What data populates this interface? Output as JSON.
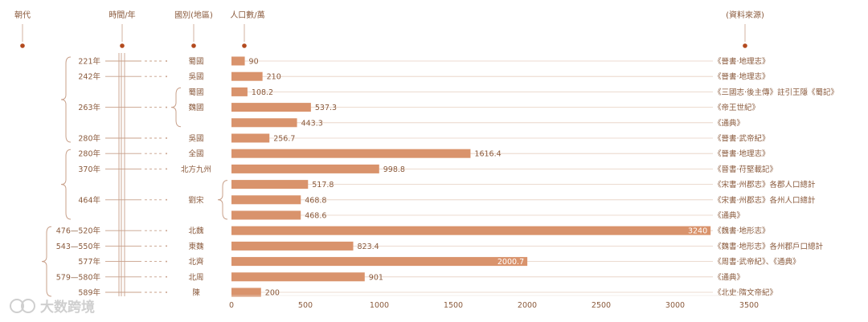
{
  "headers": {
    "dynasty": "朝代",
    "time": "時間/年",
    "state": "國別(地區)",
    "population": "人口數/萬",
    "source": "(資料來源)"
  },
  "watermark": "大数跨境",
  "colors": {
    "bar": "#d9936c",
    "text": "#8a5a3c",
    "line": "#c8a08a",
    "dot": "#b34a1e"
  },
  "chart_data": {
    "type": "bar",
    "orientation": "horizontal",
    "title": "",
    "xlabel": "人口數/萬",
    "xlim": [
      0,
      3500
    ],
    "xticks": [
      0,
      500,
      1000,
      1500,
      2000,
      2500,
      3000,
      3500
    ],
    "rows": [
      {
        "year": "221年",
        "state": "蜀國",
        "value": 90,
        "label": "90",
        "source": "《晉書·地理志》"
      },
      {
        "year": "242年",
        "state": "吳國",
        "value": 210,
        "label": "210",
        "source": "《晉書·地理志》"
      },
      {
        "year": "",
        "state": "蜀國",
        "value": 108.2,
        "label": "108.2",
        "source": "《三國志·後主傳》註引王隱《蜀記》"
      },
      {
        "year": "263年",
        "state": "魏國",
        "value": 537.3,
        "label": "537.3",
        "source": "《帝王世紀》"
      },
      {
        "year": "",
        "state": "",
        "value": 443.3,
        "label": "443.3",
        "source": "《通典》"
      },
      {
        "year": "280年",
        "state": "吳國",
        "value": 256.7,
        "label": "256.7",
        "source": "《晉書·武帝紀》"
      },
      {
        "year": "280年",
        "state": "全國",
        "value": 1616.4,
        "label": "1616.4",
        "source": "《晉書·地理志》"
      },
      {
        "year": "370年",
        "state": "北方九州",
        "value": 998.8,
        "label": "998.8",
        "source": "《晉書·苻堅載記》"
      },
      {
        "year": "",
        "state": "",
        "value": 517.8,
        "label": "517.8",
        "source": "《宋書·州郡志》各郡人口總計"
      },
      {
        "year": "464年",
        "state": "劉宋",
        "value": 468.8,
        "label": "468.8",
        "source": "《宋書·州郡志》各州人口總計"
      },
      {
        "year": "",
        "state": "",
        "value": 468.6,
        "label": "468.6",
        "source": "《通典》"
      },
      {
        "year": "476—520年",
        "state": "北魏",
        "value": 3240,
        "label": "3240",
        "source": "《魏書·地形志》"
      },
      {
        "year": "543—550年",
        "state": "東魏",
        "value": 823.4,
        "label": "823.4",
        "source": "《魏書·地形志》各州郡戶口總計"
      },
      {
        "year": "577年",
        "state": "北齊",
        "value": 2000.7,
        "label": "2000.7",
        "source": "《周書·武帝紀》、《通典》"
      },
      {
        "year": "579—580年",
        "state": "北周",
        "value": 901,
        "label": "901",
        "source": "《通典》"
      },
      {
        "year": "589年",
        "state": "陳",
        "value": 200,
        "label": "200",
        "source": "《北史·隋文帝紀》"
      }
    ]
  }
}
